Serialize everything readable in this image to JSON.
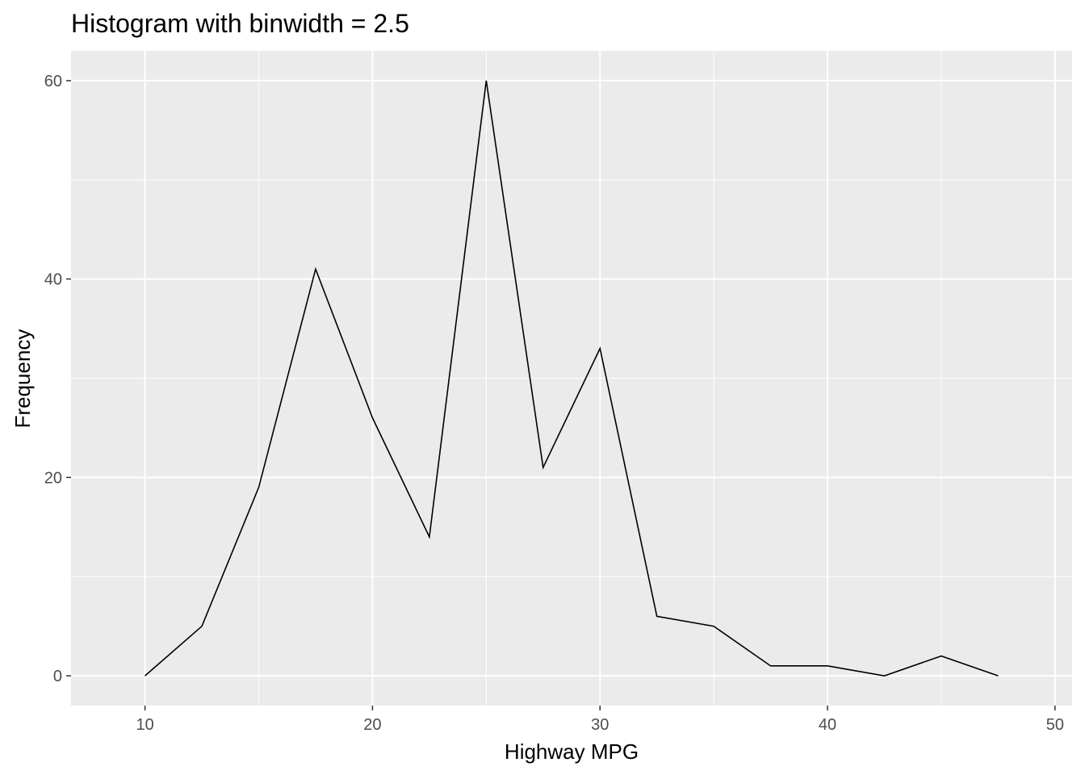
{
  "chart_data": {
    "type": "line",
    "title": "Histogram with binwidth = 2.5",
    "xlabel": "Highway MPG",
    "ylabel": "Frequency",
    "x": [
      10,
      12.5,
      15,
      17.5,
      20,
      22.5,
      25,
      27.5,
      30,
      32.5,
      35,
      37.5,
      40,
      42.5,
      45,
      47.5
    ],
    "y": [
      0,
      5,
      19,
      41,
      26,
      14,
      60,
      21,
      33,
      6,
      5,
      1,
      1,
      0,
      2,
      0
    ],
    "xlim": [
      6.75,
      50.75
    ],
    "ylim": [
      -3,
      63
    ],
    "x_ticks": [
      10,
      20,
      30,
      40,
      50
    ],
    "y_ticks": [
      0,
      20,
      40,
      60
    ],
    "x_minor_ticks": [
      15,
      25,
      35,
      45
    ],
    "y_minor_ticks": [
      10,
      30,
      50
    ],
    "grid": true,
    "legend": "none",
    "colors": {
      "panel_background": "#ebebeb",
      "grid_line": "#ffffff",
      "line": "#000000",
      "tick_label": "#4d4d4d",
      "axis_tick": "#333333"
    }
  }
}
